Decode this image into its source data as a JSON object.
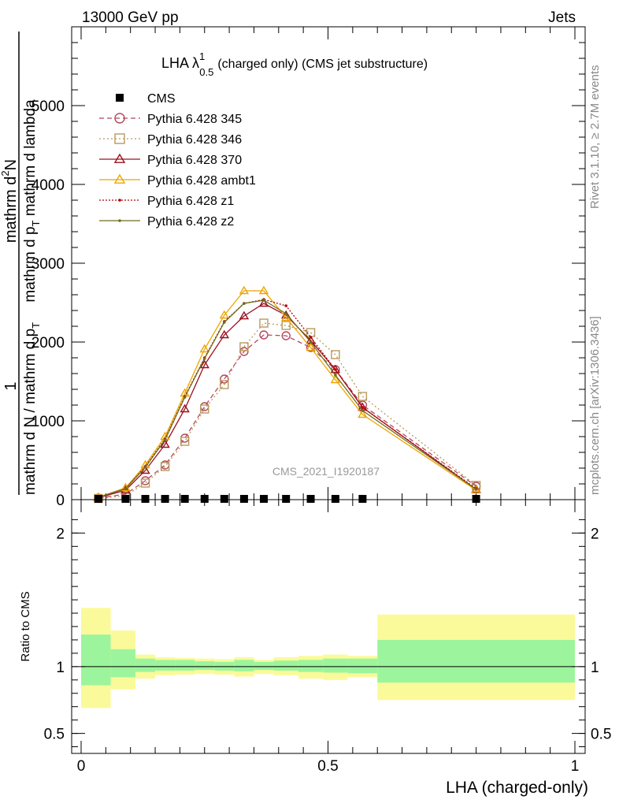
{
  "header": {
    "energy": "13000 GeV pp",
    "process": "Jets"
  },
  "plot_title": {
    "main": "LHA λ",
    "sup": "1",
    "sub": "0.5",
    "rest": "(charged only) (CMS jet substructure)"
  },
  "side_labels": {
    "rivet": "Rivet 3.1.10, ≥ 2.7M events",
    "mcplots": "mcplots.cern.ch [arXiv:1306.3436]"
  },
  "watermark": "CMS_2021_I1920187",
  "ylabel_main": {
    "one": "1",
    "numer_top": "mathrm d",
    "numer_sup": "2",
    "numer_n": "N",
    "denom_top": "mathrm d p",
    "denom_sub": "T",
    "denom_rest": " mathrm d lambda",
    "left_bottom": "mathrm d N / mathrm d p",
    "left_sub": "T"
  },
  "ylabel_ratio": "Ratio to CMS",
  "xlabel": "LHA (charged-only)",
  "colors": {
    "cms": "#000000",
    "p345": "#b5475e",
    "p346": "#b89a5e",
    "p370": "#9b1020",
    "ambt1": "#eea500",
    "z1": "#b00000",
    "z2": "#6e6e1e",
    "band_inner": "#9cf59c",
    "band_outer": "#fafa9a"
  },
  "chart_data": [
    {
      "type": "line",
      "xlabel": "",
      "ylabel": "",
      "xlim": [
        0,
        1
      ],
      "ylim": [
        0,
        6000
      ],
      "yticks": [
        0,
        1000,
        2000,
        3000,
        4000,
        5000
      ],
      "ytick_labels": [
        "0",
        "1000",
        "2000",
        "3000",
        "4000",
        "5000"
      ],
      "legend_position": "top-left",
      "x": [
        0.035,
        0.09,
        0.13,
        0.17,
        0.21,
        0.25,
        0.29,
        0.33,
        0.37,
        0.415,
        0.465,
        0.515,
        0.57,
        0.8
      ],
      "series": [
        {
          "name": "CMS",
          "style": "square",
          "values": [
            0,
            0,
            0,
            0,
            0,
            0,
            0,
            0,
            0,
            0,
            0,
            0,
            0,
            0
          ]
        },
        {
          "name": "Pythia 6.428 345",
          "style": "circle-dashed",
          "values": [
            20,
            70,
            240,
            440,
            780,
            1180,
            1530,
            1880,
            2090,
            2080,
            1930,
            1650,
            1200,
            170
          ]
        },
        {
          "name": "Pythia 6.428 346",
          "style": "square-dotted",
          "values": [
            15,
            50,
            210,
            420,
            740,
            1150,
            1460,
            1940,
            2240,
            2210,
            2120,
            1840,
            1310,
            180
          ]
        },
        {
          "name": "Pythia 6.428 370",
          "style": "triangle-solid",
          "values": [
            25,
            120,
            370,
            700,
            1150,
            1710,
            2090,
            2330,
            2490,
            2340,
            2020,
            1650,
            1170,
            130
          ]
        },
        {
          "name": "Pythia 6.428 ambt1",
          "style": "triangle-solid",
          "values": [
            30,
            150,
            440,
            800,
            1350,
            1910,
            2340,
            2650,
            2650,
            2310,
            1930,
            1520,
            1080,
            120
          ]
        },
        {
          "name": "Pythia 6.428 z1",
          "style": "dot-dotted",
          "values": [
            30,
            140,
            420,
            770,
            1310,
            1800,
            2260,
            2490,
            2540,
            2460,
            2060,
            1650,
            1170,
            140
          ]
        },
        {
          "name": "Pythia 6.428 z2",
          "style": "dot-solid",
          "values": [
            30,
            140,
            410,
            760,
            1300,
            1790,
            2250,
            2490,
            2530,
            2360,
            2000,
            1580,
            1130,
            130
          ]
        }
      ]
    },
    {
      "type": "area",
      "ylabel": "Ratio to CMS",
      "xlabel": "LHA (charged-only)",
      "xlim": [
        0,
        1
      ],
      "ylim": [
        0.35,
        2.25
      ],
      "xticks": [
        0,
        0.5,
        1
      ],
      "xtick_labels": [
        "0",
        "0.5",
        "1"
      ],
      "yticks": [
        0.5,
        1,
        2
      ],
      "ytick_labels": [
        "0.5",
        "1",
        "2"
      ],
      "bins": [
        0,
        0.06,
        0.11,
        0.15,
        0.19,
        0.23,
        0.27,
        0.31,
        0.35,
        0.39,
        0.44,
        0.49,
        0.54,
        0.6,
        1.0
      ],
      "inner_band": [
        [
          0.86,
          1.24
        ],
        [
          0.92,
          1.13
        ],
        [
          0.96,
          1.06
        ],
        [
          0.97,
          1.05
        ],
        [
          0.97,
          1.05
        ],
        [
          0.975,
          1.04
        ],
        [
          0.97,
          1.035
        ],
        [
          0.965,
          1.05
        ],
        [
          0.975,
          1.035
        ],
        [
          0.97,
          1.045
        ],
        [
          0.96,
          1.05
        ],
        [
          0.955,
          1.06
        ],
        [
          0.95,
          1.06
        ],
        [
          0.88,
          1.2
        ]
      ],
      "outer_band": [
        [
          0.69,
          1.44
        ],
        [
          0.83,
          1.27
        ],
        [
          0.91,
          1.09
        ],
        [
          0.935,
          1.07
        ],
        [
          0.94,
          1.065
        ],
        [
          0.945,
          1.06
        ],
        [
          0.94,
          1.055
        ],
        [
          0.925,
          1.07
        ],
        [
          0.945,
          1.05
        ],
        [
          0.935,
          1.07
        ],
        [
          0.91,
          1.08
        ],
        [
          0.9,
          1.09
        ],
        [
          0.92,
          1.08
        ],
        [
          0.75,
          1.39
        ]
      ],
      "reference_line": 1
    }
  ]
}
